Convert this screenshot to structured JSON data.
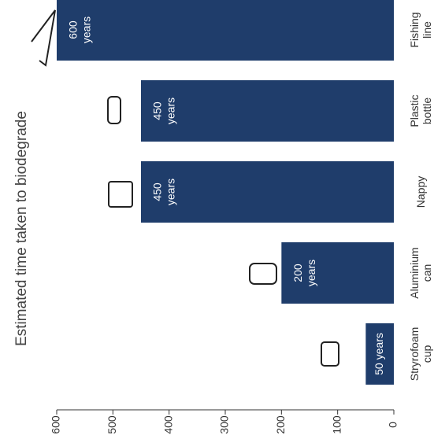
{
  "chart_data": {
    "type": "bar",
    "title": "Estimated time taken to biodegrade",
    "categories": [
      "Stryrofoam cup",
      "Aluminium can",
      "Nappy",
      "Plastic bottle",
      "Fishing line"
    ],
    "values": [
      50,
      200,
      450,
      450,
      600
    ],
    "value_labels": [
      "50 years",
      "200 years",
      "450 years",
      "450 years",
      "600 years"
    ],
    "color": "#1f3d6b",
    "ylim": [
      0,
      600
    ],
    "yticks": [
      0,
      100,
      200,
      300,
      400,
      500,
      600
    ],
    "grid": false
  }
}
